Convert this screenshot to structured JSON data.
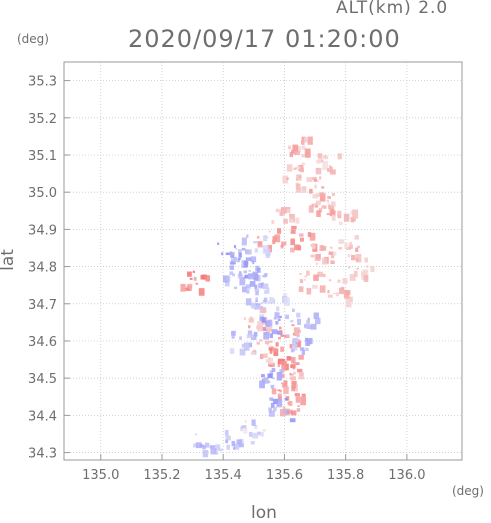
{
  "header": {
    "altitude_label": "ALT(km) 2.0",
    "timestamp": "2020/09/17 01:20:00"
  },
  "axes": {
    "y_unit": "(deg)",
    "x_unit": "(deg)",
    "xlabel": "lon",
    "ylabel": "lat"
  },
  "chart_data": {
    "type": "scatter",
    "title": "2020/09/17 01:20:00",
    "subtitle": "ALT(km) 2.0",
    "xlabel": "lon",
    "ylabel": "lat",
    "xlim": [
      134.88,
      136.18
    ],
    "ylim": [
      34.28,
      35.35
    ],
    "x_ticks": [
      "135.0",
      "135.2",
      "135.4",
      "135.6",
      "135.8",
      "136.0"
    ],
    "y_ticks": [
      "34.3",
      "34.4",
      "34.5",
      "34.6",
      "34.7",
      "34.8",
      "34.9",
      "35.0",
      "35.1",
      "35.2",
      "35.3"
    ],
    "grid": true,
    "colors": {
      "positive": "#e87878",
      "negative": "#8c8cf0",
      "axis": "#9a9a9a"
    },
    "series": [
      {
        "values": [
          {
            "x": 135.6,
            "y": 34.95,
            "v": 0.3
          },
          {
            "x": 135.68,
            "y": 35.02,
            "v": 0.4
          },
          {
            "x": 135.72,
            "y": 34.98,
            "v": 0.35
          },
          {
            "x": 135.78,
            "y": 34.95,
            "v": 0.3
          },
          {
            "x": 135.62,
            "y": 35.05,
            "v": 0.3
          },
          {
            "x": 135.55,
            "y": 34.88,
            "v": 0.5
          },
          {
            "x": 135.66,
            "y": 34.88,
            "v": 0.6
          },
          {
            "x": 135.72,
            "y": 34.84,
            "v": 0.4
          },
          {
            "x": 135.8,
            "y": 34.86,
            "v": 0.3
          },
          {
            "x": 135.84,
            "y": 34.8,
            "v": 0.3
          },
          {
            "x": 135.78,
            "y": 34.74,
            "v": 0.3
          },
          {
            "x": 135.68,
            "y": 34.76,
            "v": 0.35
          },
          {
            "x": 135.42,
            "y": 34.84,
            "v": -0.5
          },
          {
            "x": 135.46,
            "y": 34.8,
            "v": -0.6
          },
          {
            "x": 135.44,
            "y": 34.76,
            "v": -0.45
          },
          {
            "x": 135.5,
            "y": 34.86,
            "v": -0.3
          },
          {
            "x": 135.52,
            "y": 34.78,
            "v": -0.4
          },
          {
            "x": 135.5,
            "y": 34.72,
            "v": -0.3
          },
          {
            "x": 135.56,
            "y": 34.7,
            "v": -0.2
          },
          {
            "x": 135.5,
            "y": 34.66,
            "v": 0.4
          },
          {
            "x": 135.56,
            "y": 34.64,
            "v": -0.5
          },
          {
            "x": 135.6,
            "y": 34.62,
            "v": 0.6
          },
          {
            "x": 135.64,
            "y": 34.6,
            "v": -0.4
          },
          {
            "x": 135.58,
            "y": 34.56,
            "v": 0.7
          },
          {
            "x": 135.62,
            "y": 34.54,
            "v": 0.5
          },
          {
            "x": 135.56,
            "y": 34.5,
            "v": -0.6
          },
          {
            "x": 135.6,
            "y": 34.48,
            "v": 0.5
          },
          {
            "x": 135.62,
            "y": 34.44,
            "v": 0.6
          },
          {
            "x": 135.58,
            "y": 34.42,
            "v": -0.5
          },
          {
            "x": 135.46,
            "y": 34.6,
            "v": -0.3
          },
          {
            "x": 135.52,
            "y": 34.58,
            "v": 0.3
          },
          {
            "x": 135.66,
            "y": 34.66,
            "v": -0.3
          },
          {
            "x": 135.3,
            "y": 34.76,
            "v": 0.7
          },
          {
            "x": 135.34,
            "y": 34.33,
            "v": -0.3
          },
          {
            "x": 135.42,
            "y": 34.34,
            "v": -0.3
          },
          {
            "x": 135.5,
            "y": 34.36,
            "v": -0.2
          },
          {
            "x": 135.74,
            "y": 35.08,
            "v": 0.3
          },
          {
            "x": 135.64,
            "y": 35.12,
            "v": 0.4
          }
        ]
      }
    ]
  }
}
